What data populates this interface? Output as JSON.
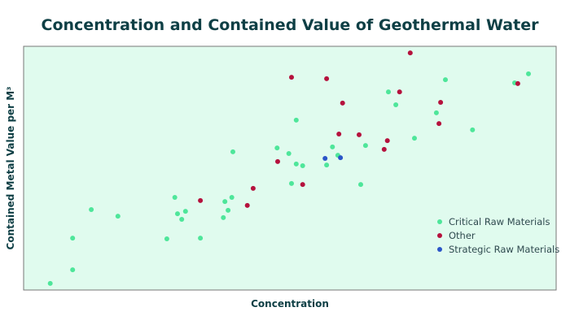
{
  "chart_data": {
    "type": "scatter",
    "title": "Concentration and Contained Value of Geothermal Water",
    "xlabel": "Concentration",
    "ylabel": "Contained Metal Value per M³",
    "xlim": [
      0,
      100
    ],
    "ylim": [
      0,
      100
    ],
    "grid": false,
    "legend_position": "bottom-right",
    "background": "#e0fbee",
    "series": [
      {
        "name": "Critical Raw Materials",
        "color": "#4ee69a",
        "points": [
          [
            5.0,
            2.7
          ],
          [
            9.2,
            8.3
          ],
          [
            9.2,
            21.3
          ],
          [
            12.7,
            33.0
          ],
          [
            17.7,
            30.3
          ],
          [
            26.9,
            21.0
          ],
          [
            28.4,
            38.0
          ],
          [
            28.9,
            31.3
          ],
          [
            29.7,
            29.0
          ],
          [
            30.4,
            32.3
          ],
          [
            33.2,
            21.3
          ],
          [
            37.5,
            29.7
          ],
          [
            37.8,
            36.3
          ],
          [
            38.4,
            32.7
          ],
          [
            39.1,
            38.0
          ],
          [
            39.3,
            56.7
          ],
          [
            47.6,
            58.3
          ],
          [
            68.5,
            81.3
          ],
          [
            79.2,
            86.3
          ],
          [
            94.8,
            88.7
          ],
          [
            92.2,
            85.0
          ],
          [
            69.9,
            76.0
          ],
          [
            77.5,
            72.7
          ],
          [
            51.2,
            69.7
          ],
          [
            84.3,
            65.7
          ],
          [
            73.4,
            62.3
          ],
          [
            64.2,
            59.3
          ],
          [
            58.0,
            58.7
          ],
          [
            49.8,
            56.0
          ],
          [
            59.0,
            55.3
          ],
          [
            51.2,
            51.7
          ],
          [
            52.4,
            51.0
          ],
          [
            56.9,
            51.3
          ],
          [
            50.3,
            43.7
          ],
          [
            63.3,
            43.3
          ]
        ]
      },
      {
        "name": "Other",
        "color": "#b5123d",
        "points": [
          [
            33.2,
            36.7
          ],
          [
            42.0,
            34.7
          ],
          [
            43.1,
            41.7
          ],
          [
            47.7,
            52.7
          ],
          [
            72.6,
            97.3
          ],
          [
            50.3,
            87.3
          ],
          [
            56.9,
            86.7
          ],
          [
            70.6,
            81.3
          ],
          [
            59.9,
            76.7
          ],
          [
            78.3,
            77.0
          ],
          [
            78.0,
            68.3
          ],
          [
            59.2,
            64.0
          ],
          [
            63.0,
            63.7
          ],
          [
            68.3,
            61.3
          ],
          [
            67.7,
            57.7
          ],
          [
            52.4,
            43.3
          ],
          [
            92.8,
            84.7
          ]
        ]
      },
      {
        "name": "Strategic Raw Materials",
        "color": "#2a55c8",
        "points": [
          [
            56.6,
            54.0
          ],
          [
            59.5,
            54.3
          ]
        ]
      }
    ]
  }
}
